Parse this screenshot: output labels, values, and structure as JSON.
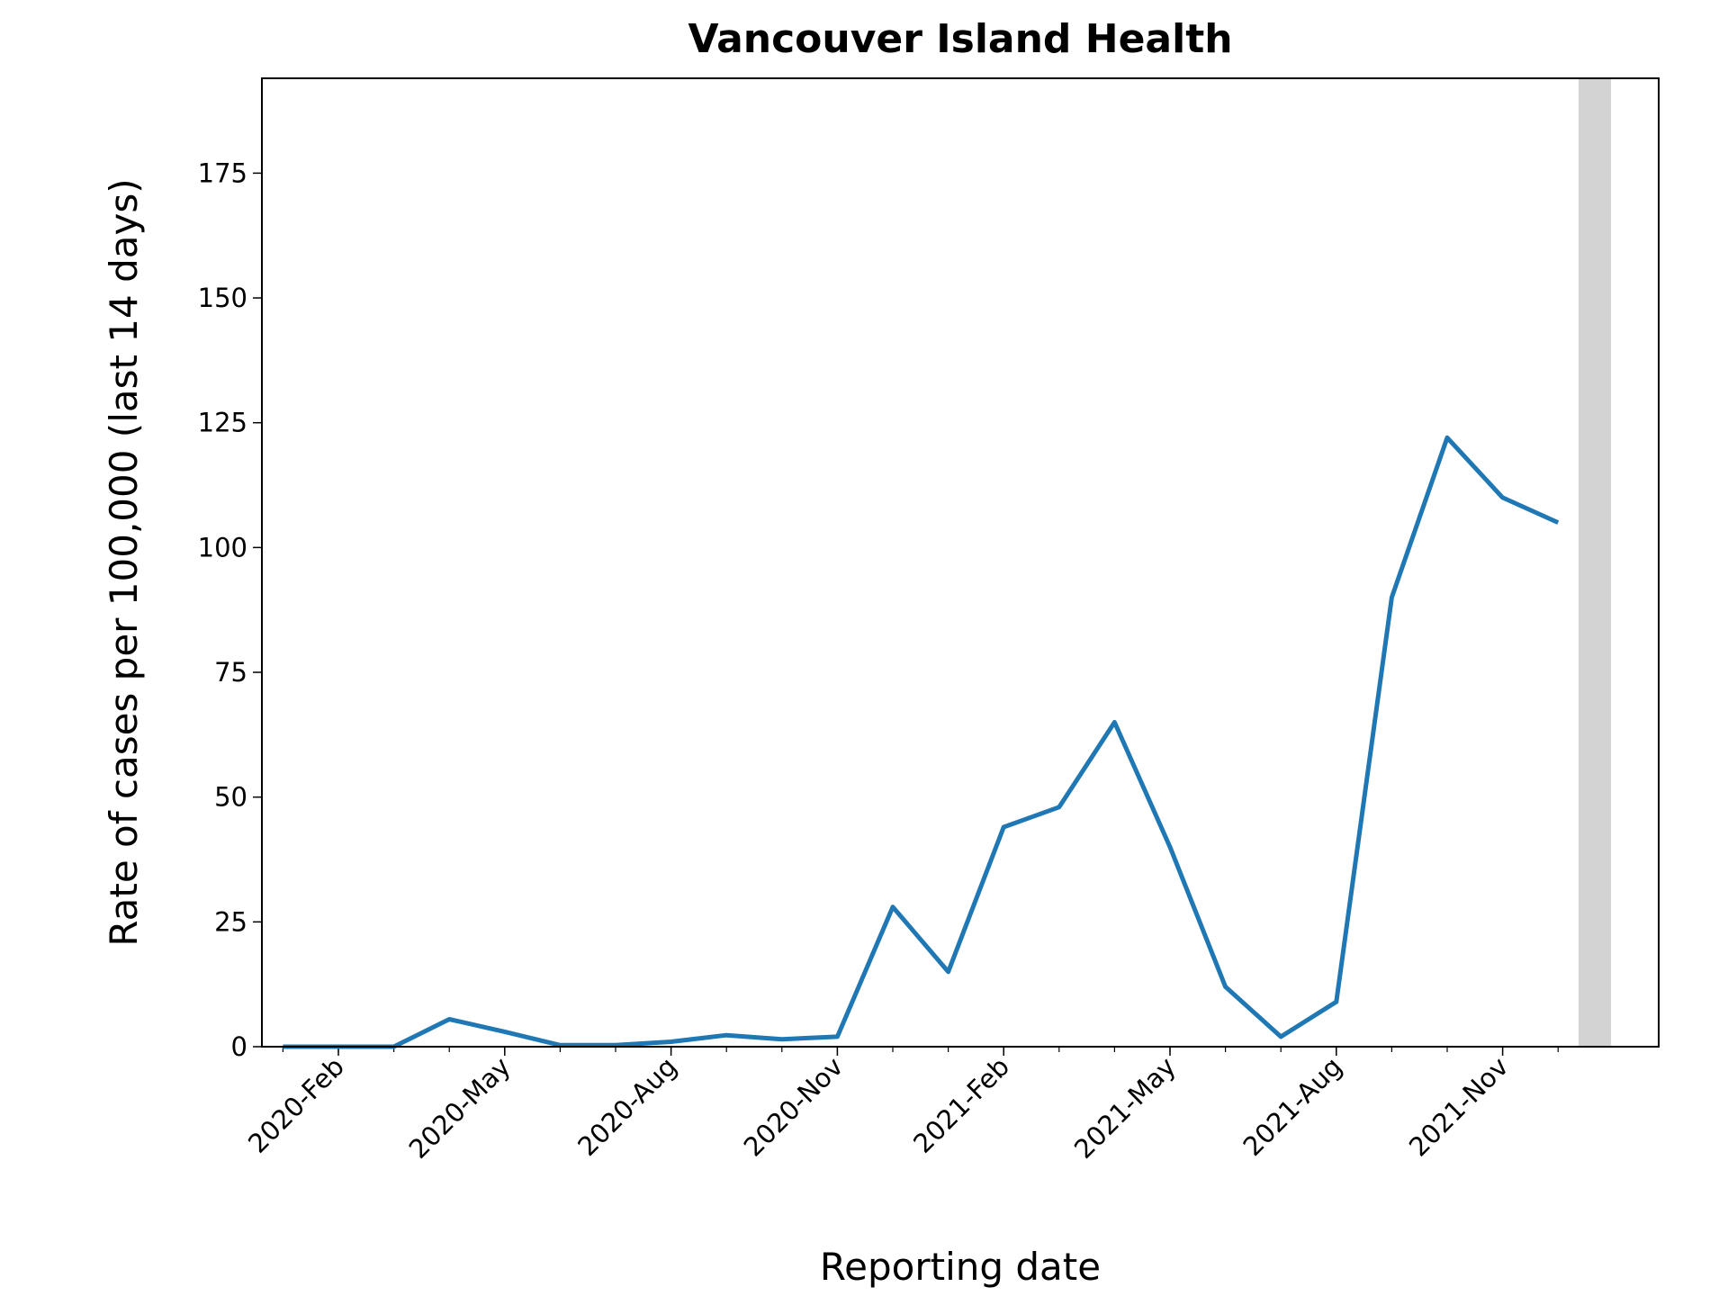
{
  "chart_data": {
    "type": "line",
    "title": "Vancouver Island Health",
    "x_label": "Reporting date",
    "y_label": "Rate of cases per 100,000 (last 14 days)",
    "x": [
      "2020-01",
      "2020-02",
      "2020-03",
      "2020-04",
      "2020-05",
      "2020-06",
      "2020-07",
      "2020-08",
      "2020-09",
      "2020-10",
      "2020-11",
      "2020-12",
      "2021-01",
      "2021-02",
      "2021-03",
      "2021-04",
      "2021-05",
      "2021-06",
      "2021-07",
      "2021-08",
      "2021-09",
      "2021-10",
      "2021-11",
      "2021-12"
    ],
    "series": [
      {
        "color": "#1f77b4",
        "values": [
          0,
          0,
          0,
          5.5,
          3,
          0.3,
          0.3,
          1,
          2.3,
          1.5,
          2,
          28,
          15,
          44,
          48,
          65,
          40,
          12,
          2,
          9,
          90,
          122,
          110,
          105
        ]
      }
    ],
    "ylim": [
      0,
      194
    ],
    "yticks": [
      0,
      25,
      50,
      75,
      100,
      125,
      150,
      175
    ],
    "xticks": [
      {
        "value": "2020-02",
        "label": "2020-Feb"
      },
      {
        "value": "2020-05",
        "label": "2020-May"
      },
      {
        "value": "2020-08",
        "label": "2020-Aug"
      },
      {
        "value": "2020-11",
        "label": "2020-Nov"
      },
      {
        "value": "2021-02",
        "label": "2021-Feb"
      },
      {
        "value": "2021-05",
        "label": "2021-May"
      },
      {
        "value": "2021-08",
        "label": "2021-Aug"
      },
      {
        "value": "2021-11",
        "label": "2021-Nov"
      }
    ]
  }
}
